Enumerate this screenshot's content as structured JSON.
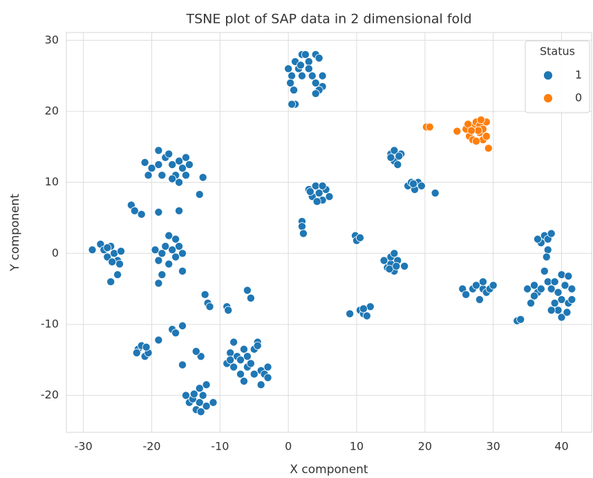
{
  "chart_data": {
    "type": "scatter",
    "title": "TSNE plot of SAP data in 2 dimensional fold",
    "x_label": "X component",
    "y_label": "Y component",
    "legend_title": "Status",
    "legend": "upper right",
    "grid": true,
    "xlim": [
      -32.5,
      44.5
    ],
    "ylim": [
      -25.2,
      31.1
    ],
    "xticks": [
      -30,
      -20,
      -10,
      0,
      10,
      20,
      30,
      40
    ],
    "yticks": [
      -20,
      -10,
      0,
      10,
      20,
      30
    ],
    "series": [
      {
        "name": "1",
        "color": "#1f77b4",
        "x": [
          0,
          0.5,
          1,
          1.5,
          2,
          2.5,
          3,
          0.3,
          0.8,
          1,
          2,
          3.5,
          4,
          4.5,
          4,
          5,
          5,
          4.5,
          4,
          3,
          1.8,
          0.5,
          -21,
          -20,
          -19,
          -19,
          -20.5,
          -18.5,
          -18,
          -17,
          -16.5,
          -16,
          -15.5,
          -15,
          -16,
          -17,
          -15,
          -14.5,
          -12.5,
          -13,
          -17.5,
          -23,
          -22.5,
          -21.5,
          -19,
          -16,
          -28.7,
          -27.5,
          -27,
          -26.5,
          -26,
          -25.5,
          -25,
          -24.5,
          -25,
          -26,
          -26.5,
          -25.8,
          -24.7,
          -19.5,
          -19,
          -18.5,
          -18,
          -17.5,
          -17,
          -16.5,
          -16,
          -15.5,
          -16.5,
          -15.5,
          -18.5,
          -19,
          -17.5,
          -17,
          -15.5,
          -16.5,
          -19,
          -12.2,
          -11.8,
          -11.5,
          -9,
          -8.8,
          -6,
          -5.5,
          -12.8,
          -13.5,
          -15.5,
          -22,
          -21.5,
          -21,
          -20.5,
          -22.2,
          -20.8,
          -15,
          -14.5,
          -14,
          -13.5,
          -13,
          -13,
          -12.5,
          -12,
          -12,
          -11,
          -13.8,
          -12.8,
          -9,
          -8.5,
          -8,
          -8,
          -7.5,
          -7,
          -6.5,
          -6,
          -6,
          -5.5,
          -5,
          -4.5,
          -4,
          -4,
          -3.5,
          -3,
          -3,
          -5,
          -7,
          -6.5,
          -4.5,
          -8.5,
          2,
          2,
          2.2,
          3,
          3.5,
          4,
          4.5,
          5,
          5.5,
          6,
          4.2,
          5,
          3.2,
          9.8,
          10,
          10.5,
          9,
          10.5,
          11,
          11.5,
          12,
          11,
          14,
          14.5,
          15,
          15,
          15.5,
          16,
          15.5,
          14.8,
          17,
          15.8,
          15,
          15.5,
          16,
          16.5,
          15.5,
          15,
          16.2,
          17.5,
          18,
          18.5,
          19,
          19.5,
          18.3,
          21.5,
          25.5,
          26,
          27,
          27.5,
          28,
          28.5,
          29,
          28.5,
          29.5,
          30,
          33.5,
          34,
          35,
          36,
          36.5,
          35.5,
          37,
          36,
          37.5,
          37,
          37.5,
          38,
          36.5,
          38,
          38.5,
          37.8,
          38,
          38.5,
          39,
          39.5,
          40,
          40,
          40.5,
          41,
          41.5,
          41,
          41.5,
          40,
          38.5,
          39.5,
          40.8,
          39
        ],
        "values": [
          26,
          25,
          27,
          26,
          28,
          28,
          27,
          24,
          23,
          21,
          25,
          25,
          28,
          27.5,
          24,
          25,
          23.5,
          23,
          22.5,
          26,
          26.5,
          21,
          12.8,
          12,
          14.5,
          12.5,
          11,
          11,
          13.5,
          12.5,
          11,
          13,
          12,
          13.5,
          10,
          10.5,
          11,
          12.5,
          10.7,
          8.3,
          14,
          6.8,
          6,
          5.5,
          5.8,
          6,
          0.5,
          1.3,
          0.5,
          -0.5,
          1,
          0,
          -1,
          0.3,
          -3,
          -4,
          0.8,
          -1.2,
          -1.5,
          0.5,
          -1,
          0,
          1,
          2.5,
          0.5,
          -0.5,
          1,
          0,
          2,
          -2.5,
          -3,
          -4.2,
          -1.5,
          -10.7,
          -10.2,
          -11.2,
          -12.2,
          -5.8,
          -7,
          -7.5,
          -7.5,
          -8,
          -5.2,
          -6.3,
          -14.5,
          -13.8,
          -15.7,
          -13.5,
          -13,
          -14.5,
          -14,
          -14,
          -13.2,
          -20,
          -21,
          -20.5,
          -22,
          -19,
          -21,
          -20,
          -18.5,
          -21.5,
          -21,
          -19.8,
          -22.3,
          -15.5,
          -14,
          -12.5,
          -16,
          -14.5,
          -15,
          -13.5,
          -16,
          -14.5,
          -15.5,
          -17,
          -12.5,
          -16.5,
          -18.5,
          -17,
          -16,
          -17.5,
          -13.5,
          -17,
          -18,
          -13,
          -15,
          4.5,
          3.8,
          2.8,
          9,
          8,
          9.5,
          8.5,
          7.5,
          9,
          8,
          7.3,
          9.5,
          8.7,
          2.5,
          1.8,
          2.2,
          -8.5,
          -8,
          -8.5,
          -8.8,
          -7.5,
          -7.8,
          -1,
          -2,
          -1.5,
          -0.5,
          -2.5,
          -1,
          0,
          -2.2,
          -1.8,
          -1.8,
          14,
          13,
          12.5,
          14,
          14.5,
          13.5,
          13.7,
          9.5,
          10,
          9,
          10,
          9.5,
          9.8,
          8.5,
          -5,
          -5.8,
          -5,
          -4.5,
          -6.5,
          -5,
          -5.5,
          -4,
          -5,
          -4.5,
          -9.5,
          -9.3,
          -5,
          -4.5,
          -5.5,
          -7,
          -5,
          -6,
          -2.5,
          1.5,
          2.5,
          0.5,
          2,
          2,
          2.8,
          -0.5,
          -4,
          -5,
          -7,
          -8,
          -6.5,
          -3,
          -4.5,
          -3.2,
          -5,
          -7,
          -6.5,
          -9,
          -8,
          -5.5,
          -8.3,
          -4
        ]
      },
      {
        "name": "0",
        "color": "#ff7f0e",
        "x": [
          20.2,
          20.7,
          24.7,
          26,
          26.5,
          27,
          27,
          27.5,
          28,
          28,
          28.5,
          28.5,
          29,
          29,
          29.3,
          27.5,
          26.3,
          28.2,
          27.8,
          26.8
        ],
        "values": [
          17.8,
          17.8,
          17.2,
          17.5,
          16.5,
          18,
          16,
          18.5,
          17,
          18,
          16,
          17.5,
          18.5,
          16.5,
          14.8,
          15.8,
          18.2,
          18.8,
          17.3,
          17.3
        ]
      }
    ]
  }
}
